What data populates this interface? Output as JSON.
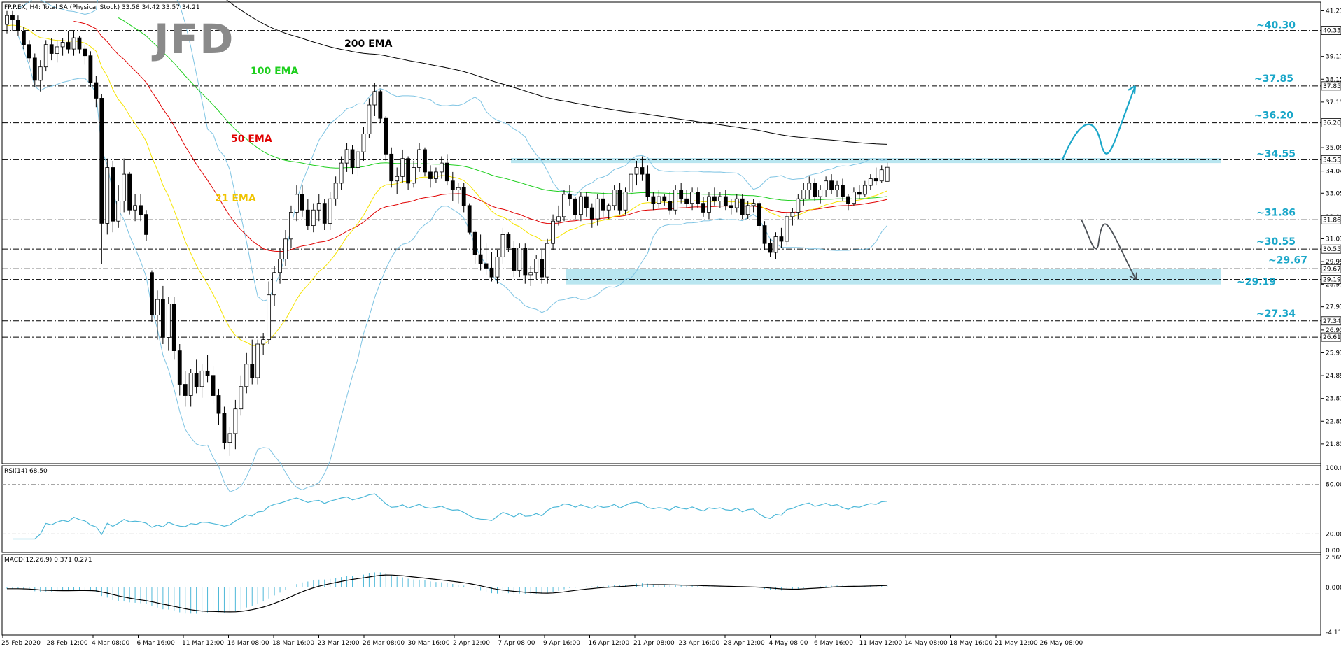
{
  "header": {
    "symbol_info": "FP.P.EX, H4:  Total SA (Physical Stock)  33.58 34.42 33.57 34.21"
  },
  "logo": "JFD",
  "colors": {
    "bull_fill": "#ffffff",
    "bear_fill": "#000000",
    "ema21": "#f6e400",
    "ema50": "#e00000",
    "ema100": "#1fcf1f",
    "ema200": "#000000",
    "bollinger": "#7fc4e3",
    "zone": "#7fd1e3",
    "level_text": "#1ba7c9",
    "rsi": "#4db8d8",
    "macd_hist": "#4db8d8",
    "macd_signal": "#000000"
  },
  "ema_labels": {
    "ema200": "200 EMA",
    "ema100": "100 EMA",
    "ema50": "50 EMA",
    "ema21": "21 EMA"
  },
  "price_axis_ticks": [
    "41.21",
    "40.33",
    "39.17",
    "38.15",
    "37.85",
    "37.13",
    "36.20",
    "35.09",
    "34.55",
    "34.04",
    "33.05",
    "32.00",
    "31.86",
    "31.01",
    "30.55",
    "29.99",
    "29.67",
    "29.19",
    "28.97",
    "27.97",
    "27.34",
    "26.93",
    "26.61",
    "25.91",
    "24.89",
    "23.87",
    "22.85",
    "21.83"
  ],
  "price_axis_boxes": [
    "40.33",
    "37.85",
    "36.20",
    "34.55",
    "31.86",
    "30.55",
    "29.67",
    "29.19",
    "27.34",
    "26.61"
  ],
  "level_labels": [
    "~40.30",
    "~37.85",
    "~36.20",
    "~34.55",
    "~31.86",
    "~30.55",
    "~29.67",
    "~29.19",
    "~27.34"
  ],
  "rsi": {
    "label": "RSI(14) 68.50",
    "axis_ticks": [
      "100.00",
      "80.00",
      "20.00",
      "0.00"
    ],
    "levels": [
      80,
      20
    ]
  },
  "macd": {
    "label": "MACD(12,26,9) 0.371 0.271",
    "axis_ticks": [
      "2.565",
      "0.000",
      "-4.114"
    ]
  },
  "time_axis_labels": [
    "25 Feb 2020",
    "28 Feb 12:00",
    "4 Mar 08:00",
    "6 Mar 16:00",
    "11 Mar 12:00",
    "16 Mar 08:00",
    "18 Mar 16:00",
    "23 Mar 12:00",
    "26 Mar 08:00",
    "30 Mar 16:00",
    "2 Apr 12:00",
    "7 Apr 08:00",
    "9 Apr 16:00",
    "16 Apr 12:00",
    "21 Apr 08:00",
    "23 Apr 16:00",
    "28 Apr 12:00",
    "4 May 08:00",
    "6 May 16:00",
    "11 May 12:00",
    "14 May 08:00",
    "18 May 16:00",
    "21 May 12:00",
    "26 May 08:00"
  ],
  "chart_data": [
    {
      "type": "candlestick",
      "title": "FP.P.EX, H4:  Total SA (Physical Stock)",
      "ylim": [
        21.0,
        41.5
      ],
      "support_resistance": [
        40.33,
        37.85,
        36.2,
        34.55,
        31.86,
        30.55,
        29.67,
        29.19,
        27.34,
        26.61
      ],
      "zones": [
        [
          34.4,
          34.62
        ],
        [
          28.97,
          29.67
        ]
      ],
      "ohlc": [
        [
          40.6,
          41.2,
          40.2,
          41.0
        ],
        [
          41.0,
          41.2,
          40.3,
          40.8
        ],
        [
          40.8,
          41.0,
          40.1,
          40.3
        ],
        [
          40.3,
          40.5,
          39.5,
          39.7
        ],
        [
          39.7,
          39.9,
          38.9,
          39.1
        ],
        [
          39.1,
          39.3,
          37.8,
          38.1
        ],
        [
          38.1,
          39.0,
          37.6,
          38.7
        ],
        [
          38.7,
          39.9,
          38.5,
          39.7
        ],
        [
          39.7,
          40.0,
          39.0,
          39.3
        ],
        [
          39.3,
          39.9,
          38.9,
          39.6
        ],
        [
          39.6,
          40.0,
          39.2,
          39.8
        ],
        [
          39.8,
          40.3,
          39.3,
          39.5
        ],
        [
          39.5,
          40.3,
          39.2,
          40.0
        ],
        [
          40.0,
          40.1,
          39.3,
          39.5
        ],
        [
          39.5,
          39.7,
          38.8,
          39.2
        ],
        [
          39.2,
          39.4,
          37.8,
          38.0
        ],
        [
          38.0,
          38.3,
          36.9,
          37.3
        ],
        [
          37.3,
          37.5,
          29.9,
          31.7
        ],
        [
          31.7,
          34.6,
          31.2,
          34.2
        ],
        [
          34.2,
          34.5,
          31.3,
          31.8
        ],
        [
          31.8,
          33.4,
          31.5,
          32.7
        ],
        [
          32.7,
          34.6,
          32.2,
          33.9
        ],
        [
          33.9,
          34.0,
          32.1,
          32.3
        ],
        [
          32.3,
          33.0,
          31.8,
          32.5
        ],
        [
          32.5,
          33.0,
          31.8,
          32.1
        ],
        [
          32.1,
          32.3,
          30.9,
          31.2
        ],
        [
          29.5,
          29.6,
          27.3,
          27.6
        ],
        [
          27.6,
          28.7,
          26.5,
          28.3
        ],
        [
          28.3,
          28.9,
          26.3,
          26.6
        ],
        [
          26.6,
          28.4,
          26.0,
          28.1
        ],
        [
          28.1,
          28.4,
          25.6,
          26.0
        ],
        [
          26.0,
          26.3,
          24.0,
          24.5
        ],
        [
          24.5,
          25.1,
          23.5,
          24.0
        ],
        [
          24.0,
          25.2,
          23.5,
          25.0
        ],
        [
          25.0,
          25.6,
          24.1,
          24.4
        ],
        [
          24.4,
          25.4,
          23.9,
          25.1
        ],
        [
          25.1,
          25.8,
          24.6,
          24.9
        ],
        [
          24.9,
          25.3,
          23.6,
          24.0
        ],
        [
          24.0,
          24.3,
          22.7,
          23.2
        ],
        [
          23.2,
          23.5,
          21.6,
          21.9
        ],
        [
          21.9,
          22.6,
          21.3,
          22.3
        ],
        [
          22.3,
          23.8,
          21.6,
          23.4
        ],
        [
          23.4,
          24.9,
          23.1,
          24.4
        ],
        [
          24.4,
          25.9,
          24.1,
          25.4
        ],
        [
          25.4,
          26.5,
          24.5,
          24.8
        ],
        [
          24.8,
          26.5,
          24.5,
          26.3
        ],
        [
          26.3,
          26.8,
          25.8,
          26.5
        ],
        [
          26.5,
          29.1,
          26.3,
          28.5
        ],
        [
          28.5,
          29.8,
          28.0,
          29.5
        ],
        [
          29.5,
          30.6,
          29.0,
          30.1
        ],
        [
          30.1,
          31.4,
          29.8,
          31.0
        ],
        [
          31.0,
          32.5,
          30.6,
          32.2
        ],
        [
          32.2,
          33.4,
          31.8,
          33.0
        ],
        [
          33.0,
          33.4,
          32.0,
          32.3
        ],
        [
          32.3,
          32.8,
          31.4,
          31.6
        ],
        [
          31.6,
          32.6,
          31.3,
          32.3
        ],
        [
          32.3,
          33.0,
          31.8,
          32.6
        ],
        [
          32.6,
          32.8,
          31.4,
          31.7
        ],
        [
          31.7,
          33.1,
          31.4,
          32.8
        ],
        [
          32.8,
          33.8,
          32.5,
          33.5
        ],
        [
          33.5,
          34.7,
          33.2,
          34.4
        ],
        [
          34.4,
          35.3,
          34.0,
          35.0
        ],
        [
          35.0,
          35.2,
          33.9,
          34.2
        ],
        [
          34.2,
          35.1,
          33.8,
          34.9
        ],
        [
          34.9,
          36.0,
          34.5,
          35.7
        ],
        [
          35.7,
          37.3,
          35.5,
          37.0
        ],
        [
          37.0,
          38.0,
          36.5,
          37.6
        ],
        [
          37.6,
          37.7,
          36.2,
          36.4
        ],
        [
          36.4,
          36.5,
          34.5,
          34.8
        ],
        [
          34.8,
          35.1,
          33.3,
          33.6
        ],
        [
          33.6,
          34.2,
          33.0,
          33.8
        ],
        [
          33.8,
          35.0,
          33.5,
          34.6
        ],
        [
          34.6,
          34.7,
          33.2,
          33.5
        ],
        [
          33.5,
          34.5,
          33.3,
          34.2
        ],
        [
          34.2,
          35.3,
          34.0,
          35.0
        ],
        [
          35.0,
          35.1,
          33.8,
          34.0
        ],
        [
          34.0,
          34.3,
          33.3,
          33.7
        ],
        [
          33.7,
          34.2,
          33.5,
          34.0
        ],
        [
          34.0,
          34.7,
          33.7,
          34.4
        ],
        [
          34.4,
          34.8,
          33.4,
          33.6
        ],
        [
          33.6,
          34.0,
          32.7,
          33.2
        ],
        [
          33.2,
          33.5,
          32.6,
          33.3
        ],
        [
          33.3,
          33.5,
          32.2,
          32.5
        ],
        [
          32.5,
          32.6,
          31.2,
          31.3
        ],
        [
          31.3,
          31.4,
          29.9,
          30.3
        ],
        [
          30.3,
          31.2,
          29.6,
          29.9
        ],
        [
          29.9,
          30.8,
          29.4,
          29.7
        ],
        [
          29.7,
          30.4,
          29.1,
          29.3
        ],
        [
          29.3,
          30.5,
          29.0,
          30.2
        ],
        [
          30.2,
          31.5,
          29.9,
          31.2
        ],
        [
          31.2,
          31.3,
          30.4,
          30.6
        ],
        [
          30.6,
          30.9,
          29.3,
          29.6
        ],
        [
          29.6,
          30.8,
          29.3,
          30.6
        ],
        [
          30.6,
          30.8,
          29.0,
          29.4
        ],
        [
          29.4,
          29.8,
          28.9,
          29.5
        ],
        [
          29.5,
          30.3,
          29.2,
          30.1
        ],
        [
          30.1,
          30.5,
          29.0,
          29.3
        ],
        [
          29.3,
          31.0,
          29.0,
          30.8
        ],
        [
          30.8,
          32.1,
          30.5,
          31.8
        ],
        [
          31.8,
          32.5,
          31.6,
          32.0
        ],
        [
          32.0,
          33.2,
          31.8,
          33.0
        ],
        [
          33.0,
          33.4,
          32.5,
          32.8
        ],
        [
          32.8,
          32.9,
          31.9,
          32.1
        ],
        [
          32.1,
          33.1,
          31.8,
          32.9
        ],
        [
          32.9,
          33.1,
          32.0,
          32.4
        ],
        [
          32.4,
          32.6,
          31.5,
          31.9
        ],
        [
          31.9,
          33.0,
          31.6,
          32.8
        ],
        [
          32.8,
          33.1,
          32.0,
          32.3
        ],
        [
          32.3,
          32.6,
          31.9,
          32.5
        ],
        [
          32.5,
          33.4,
          32.3,
          33.2
        ],
        [
          33.2,
          33.5,
          32.1,
          32.3
        ],
        [
          32.3,
          33.3,
          32.1,
          33.1
        ],
        [
          33.1,
          34.2,
          32.9,
          33.9
        ],
        [
          33.9,
          34.5,
          33.4,
          34.2
        ],
        [
          34.2,
          34.7,
          33.6,
          33.9
        ],
        [
          33.9,
          34.3,
          32.7,
          32.9
        ],
        [
          32.9,
          33.1,
          32.3,
          32.6
        ],
        [
          32.6,
          33.2,
          32.4,
          32.9
        ],
        [
          32.9,
          33.0,
          32.5,
          32.7
        ],
        [
          32.7,
          33.1,
          32.1,
          32.3
        ],
        [
          32.3,
          33.4,
          32.1,
          33.2
        ],
        [
          33.2,
          33.5,
          32.6,
          32.8
        ],
        [
          32.8,
          33.2,
          32.4,
          32.6
        ],
        [
          32.6,
          33.3,
          32.3,
          33.1
        ],
        [
          33.1,
          33.3,
          32.4,
          32.6
        ],
        [
          32.6,
          32.9,
          32.0,
          32.2
        ],
        [
          32.2,
          33.1,
          31.9,
          32.9
        ],
        [
          32.9,
          33.3,
          32.5,
          32.7
        ],
        [
          32.7,
          33.1,
          32.4,
          32.9
        ],
        [
          32.9,
          33.2,
          32.3,
          32.5
        ],
        [
          32.5,
          32.8,
          32.1,
          32.4
        ],
        [
          32.4,
          33.0,
          32.2,
          32.8
        ],
        [
          32.8,
          33.0,
          31.9,
          32.1
        ],
        [
          32.1,
          32.7,
          31.9,
          32.5
        ],
        [
          32.5,
          32.8,
          32.2,
          32.6
        ],
        [
          32.6,
          32.7,
          31.4,
          31.6
        ],
        [
          31.6,
          31.8,
          30.5,
          30.8
        ],
        [
          30.8,
          31.0,
          30.2,
          30.4
        ],
        [
          30.4,
          31.3,
          30.1,
          31.1
        ],
        [
          31.1,
          31.5,
          30.6,
          30.9
        ],
        [
          30.9,
          32.2,
          30.7,
          32.0
        ],
        [
          32.0,
          32.4,
          31.6,
          32.2
        ],
        [
          32.2,
          33.0,
          31.9,
          32.8
        ],
        [
          32.8,
          33.5,
          32.5,
          33.2
        ],
        [
          33.2,
          33.8,
          32.8,
          33.5
        ],
        [
          33.5,
          33.7,
          32.7,
          32.9
        ],
        [
          32.9,
          33.4,
          32.6,
          33.2
        ],
        [
          33.2,
          33.8,
          32.9,
          33.6
        ],
        [
          33.6,
          33.9,
          33.0,
          33.2
        ],
        [
          33.2,
          33.6,
          32.9,
          33.4
        ],
        [
          33.4,
          33.7,
          32.7,
          32.9
        ],
        [
          32.9,
          33.0,
          32.3,
          32.6
        ],
        [
          32.6,
          33.3,
          32.5,
          33.1
        ],
        [
          33.1,
          33.4,
          32.8,
          33.0
        ],
        [
          33.0,
          33.6,
          32.9,
          33.4
        ],
        [
          33.4,
          33.9,
          33.2,
          33.7
        ],
        [
          33.7,
          34.2,
          33.4,
          33.6
        ],
        [
          33.6,
          34.3,
          33.5,
          34.1
        ],
        [
          33.58,
          34.42,
          33.57,
          34.21
        ]
      ],
      "sr_arrow_up": {
        "from": 34.55,
        "to": 37.85
      },
      "sr_arrow_down": {
        "from": 31.86,
        "to": 29.19
      }
    }
  ]
}
